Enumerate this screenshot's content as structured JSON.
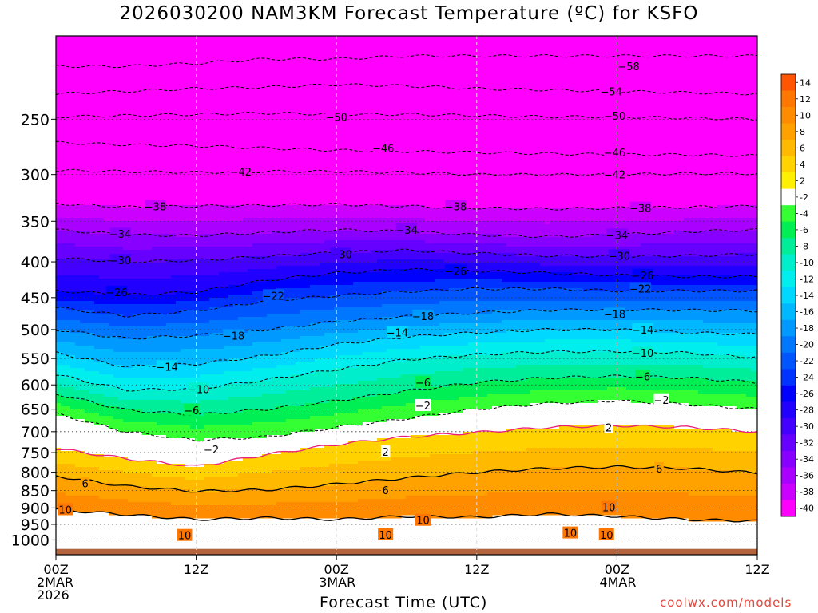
{
  "title": "2026030200 NAM3KM Forecast Temperature (ºC) for KSFO",
  "credit": "coolwx.com/models",
  "chart_data": {
    "type": "heatmap",
    "title": "2026030200 NAM3KM Forecast Temperature (ºC) for KSFO",
    "xlabel": "Forecast Time (UTC)",
    "ylabel": "",
    "x_ticks": [
      {
        "h": 0,
        "lines": [
          "00Z",
          "2MAR",
          "2026"
        ]
      },
      {
        "h": 12,
        "lines": [
          "12Z"
        ]
      },
      {
        "h": 24,
        "lines": [
          "00Z",
          "3MAR"
        ]
      },
      {
        "h": 36,
        "lines": [
          "12Z"
        ]
      },
      {
        "h": 48,
        "lines": [
          "00Z",
          "4MAR"
        ]
      },
      {
        "h": 60,
        "lines": [
          "12Z"
        ]
      }
    ],
    "xlim_hours": [
      0,
      60
    ],
    "y_axis": "pressure (hPa, log scale)",
    "ylim": [
      1050,
      190
    ],
    "y_ticks": [
      250,
      300,
      350,
      400,
      450,
      500,
      550,
      600,
      650,
      700,
      750,
      800,
      850,
      900,
      950,
      1000
    ],
    "grid": true,
    "legend": "colorbar right",
    "colorbar": {
      "labels": [
        "14",
        "12",
        "10",
        "8",
        "6",
        "4",
        "2",
        "-2",
        "-4",
        "-6",
        "-8",
        "-10",
        "-12",
        "-14",
        "-16",
        "-18",
        "-20",
        "-22",
        "-24",
        "-26",
        "-28",
        "-30",
        "-32",
        "-34",
        "-36",
        "-38",
        "-40"
      ],
      "colors": [
        "#ff5500",
        "#ff7700",
        "#ff8c00",
        "#ffa200",
        "#ffba00",
        "#ffd200",
        "#ffef00",
        "#ffffff",
        "#33ff33",
        "#00ef55",
        "#00ee99",
        "#00eecc",
        "#00eeee",
        "#00d8ff",
        "#00b8ff",
        "#0099ff",
        "#0077ff",
        "#0055ff",
        "#0033ff",
        "#0000ff",
        "#2200ff",
        "#4400ff",
        "#6600ff",
        "#8800ff",
        "#aa00ff",
        "#cc00ff",
        "#ff00ff"
      ]
    },
    "ground_color": "#b4643c",
    "isotherm_levels": [
      {
        "t": -58,
        "p": [
          210,
          210,
          208,
          205,
          205,
          203,
          203,
          203,
          203,
          203,
          203
        ]
      },
      {
        "t": -54,
        "p": [
          230,
          228,
          226,
          225,
          223,
          224,
          226,
          227,
          228,
          229,
          230
        ]
      },
      {
        "t": -50,
        "p": [
          248,
          247,
          246,
          245,
          246,
          246,
          247,
          248,
          248,
          249,
          250
        ]
      },
      {
        "t": -46,
        "p": [
          270,
          272,
          273,
          275,
          277,
          278,
          279,
          280,
          281,
          281,
          282
        ]
      },
      {
        "t": -42,
        "p": [
          296,
          297,
          298,
          297,
          297,
          298,
          300,
          300,
          300,
          299,
          299
        ]
      },
      {
        "t": -38,
        "p": [
          330,
          334,
          333,
          332,
          331,
          333,
          335,
          336,
          335,
          334,
          333
        ]
      },
      {
        "t": -34,
        "p": [
          360,
          366,
          367,
          363,
          360,
          362,
          366,
          368,
          366,
          362,
          360
        ]
      },
      {
        "t": -30,
        "p": [
          395,
          400,
          398,
          393,
          388,
          385,
          389,
          392,
          393,
          392,
          390
        ]
      },
      {
        "t": -26,
        "p": [
          440,
          446,
          442,
          425,
          415,
          410,
          412,
          415,
          418,
          420,
          420
        ]
      },
      {
        "t": -22,
        "p": [
          465,
          478,
          470,
          455,
          447,
          441,
          437,
          437,
          440,
          440,
          440
        ]
      },
      {
        "t": -18,
        "p": [
          500,
          515,
          510,
          500,
          487,
          479,
          473,
          469,
          468,
          469,
          470
        ]
      },
      {
        "t": -14,
        "p": [
          540,
          565,
          560,
          545,
          525,
          512,
          505,
          500,
          500,
          505,
          508
        ]
      },
      {
        "t": -10,
        "p": [
          580,
          610,
          608,
          590,
          570,
          552,
          543,
          538,
          537,
          540,
          548
        ]
      },
      {
        "t": -6,
        "p": [
          618,
          652,
          662,
          650,
          632,
          612,
          595,
          586,
          583,
          586,
          595
        ]
      },
      {
        "t": -2,
        "p": [
          660,
          700,
          720,
          712,
          690,
          670,
          650,
          638,
          632,
          640,
          650
        ]
      },
      {
        "t": 2,
        "p": [
          740,
          765,
          785,
          755,
          730,
          712,
          702,
          690,
          686,
          690,
          700
        ]
      },
      {
        "t": 6,
        "p": [
          810,
          838,
          852,
          848,
          832,
          815,
          800,
          790,
          786,
          790,
          802
        ]
      },
      {
        "t": 10,
        "p": [
          905,
          920,
          935,
          930,
          935,
          925,
          928,
          918,
          925,
          935,
          940
        ]
      }
    ],
    "contour_labels": [
      {
        "t": -58,
        "h": 49,
        "p": 210
      },
      {
        "t": -54,
        "h": 47.5,
        "p": 228
      },
      {
        "t": -50,
        "h": 24,
        "p": 248
      },
      {
        "t": -50,
        "h": 47.8,
        "p": 247
      },
      {
        "t": -46,
        "h": 28,
        "p": 275
      },
      {
        "t": -46,
        "h": 47.8,
        "p": 279
      },
      {
        "t": -42,
        "h": 15.8,
        "p": 297
      },
      {
        "t": -42,
        "h": 47.8,
        "p": 300
      },
      {
        "t": -38,
        "h": 8.5,
        "p": 333
      },
      {
        "t": -38,
        "h": 34.2,
        "p": 333
      },
      {
        "t": -38,
        "h": 50,
        "p": 335
      },
      {
        "t": -34,
        "h": 5.5,
        "p": 365
      },
      {
        "t": -34,
        "h": 30,
        "p": 360
      },
      {
        "t": -34,
        "h": 48,
        "p": 366
      },
      {
        "t": -30,
        "h": 5.5,
        "p": 398
      },
      {
        "t": -30,
        "h": 24.4,
        "p": 390
      },
      {
        "t": -30,
        "h": 48.2,
        "p": 392
      },
      {
        "t": -26,
        "h": 5.2,
        "p": 442
      },
      {
        "t": -26,
        "h": 34.2,
        "p": 412
      },
      {
        "t": -26,
        "h": 50.2,
        "p": 418
      },
      {
        "t": -22,
        "h": 18.6,
        "p": 447
      },
      {
        "t": -22,
        "h": 50,
        "p": 437
      },
      {
        "t": -18,
        "h": 15.2,
        "p": 510
      },
      {
        "t": -18,
        "h": 31.4,
        "p": 478
      },
      {
        "t": -18,
        "h": 47.8,
        "p": 475
      },
      {
        "t": -14,
        "h": 9.5,
        "p": 565
      },
      {
        "t": -14,
        "h": 29.2,
        "p": 505
      },
      {
        "t": -14,
        "h": 50.2,
        "p": 500
      },
      {
        "t": -10,
        "h": 12.2,
        "p": 608
      },
      {
        "t": -10,
        "h": 50.2,
        "p": 540
      },
      {
        "t": -6,
        "h": 11.6,
        "p": 652
      },
      {
        "t": -6,
        "h": 31.4,
        "p": 595
      },
      {
        "t": -6,
        "h": 50.2,
        "p": 583
      },
      {
        "t": -2,
        "h": 13.3,
        "p": 742
      },
      {
        "t": -2,
        "h": 31.4,
        "p": 642
      },
      {
        "t": -2,
        "h": 51.8,
        "p": 630
      },
      {
        "t": 2,
        "h": 28.2,
        "p": 748
      },
      {
        "t": 2,
        "h": 47.3,
        "p": 690
      },
      {
        "t": 6,
        "h": 2.5,
        "p": 830
      },
      {
        "t": 6,
        "h": 28.2,
        "p": 848
      },
      {
        "t": 6,
        "h": 51.6,
        "p": 790
      },
      {
        "t": 10,
        "h": 0.8,
        "p": 905
      },
      {
        "t": 10,
        "h": 11,
        "p": 985
      },
      {
        "t": 10,
        "h": 28.2,
        "p": 983
      },
      {
        "t": 10,
        "h": 31.4,
        "p": 937
      },
      {
        "t": 10,
        "h": 44,
        "p": 977
      },
      {
        "t": 10,
        "h": 47.3,
        "p": 898
      },
      {
        "t": 10,
        "h": 47.1,
        "p": 983
      }
    ]
  }
}
